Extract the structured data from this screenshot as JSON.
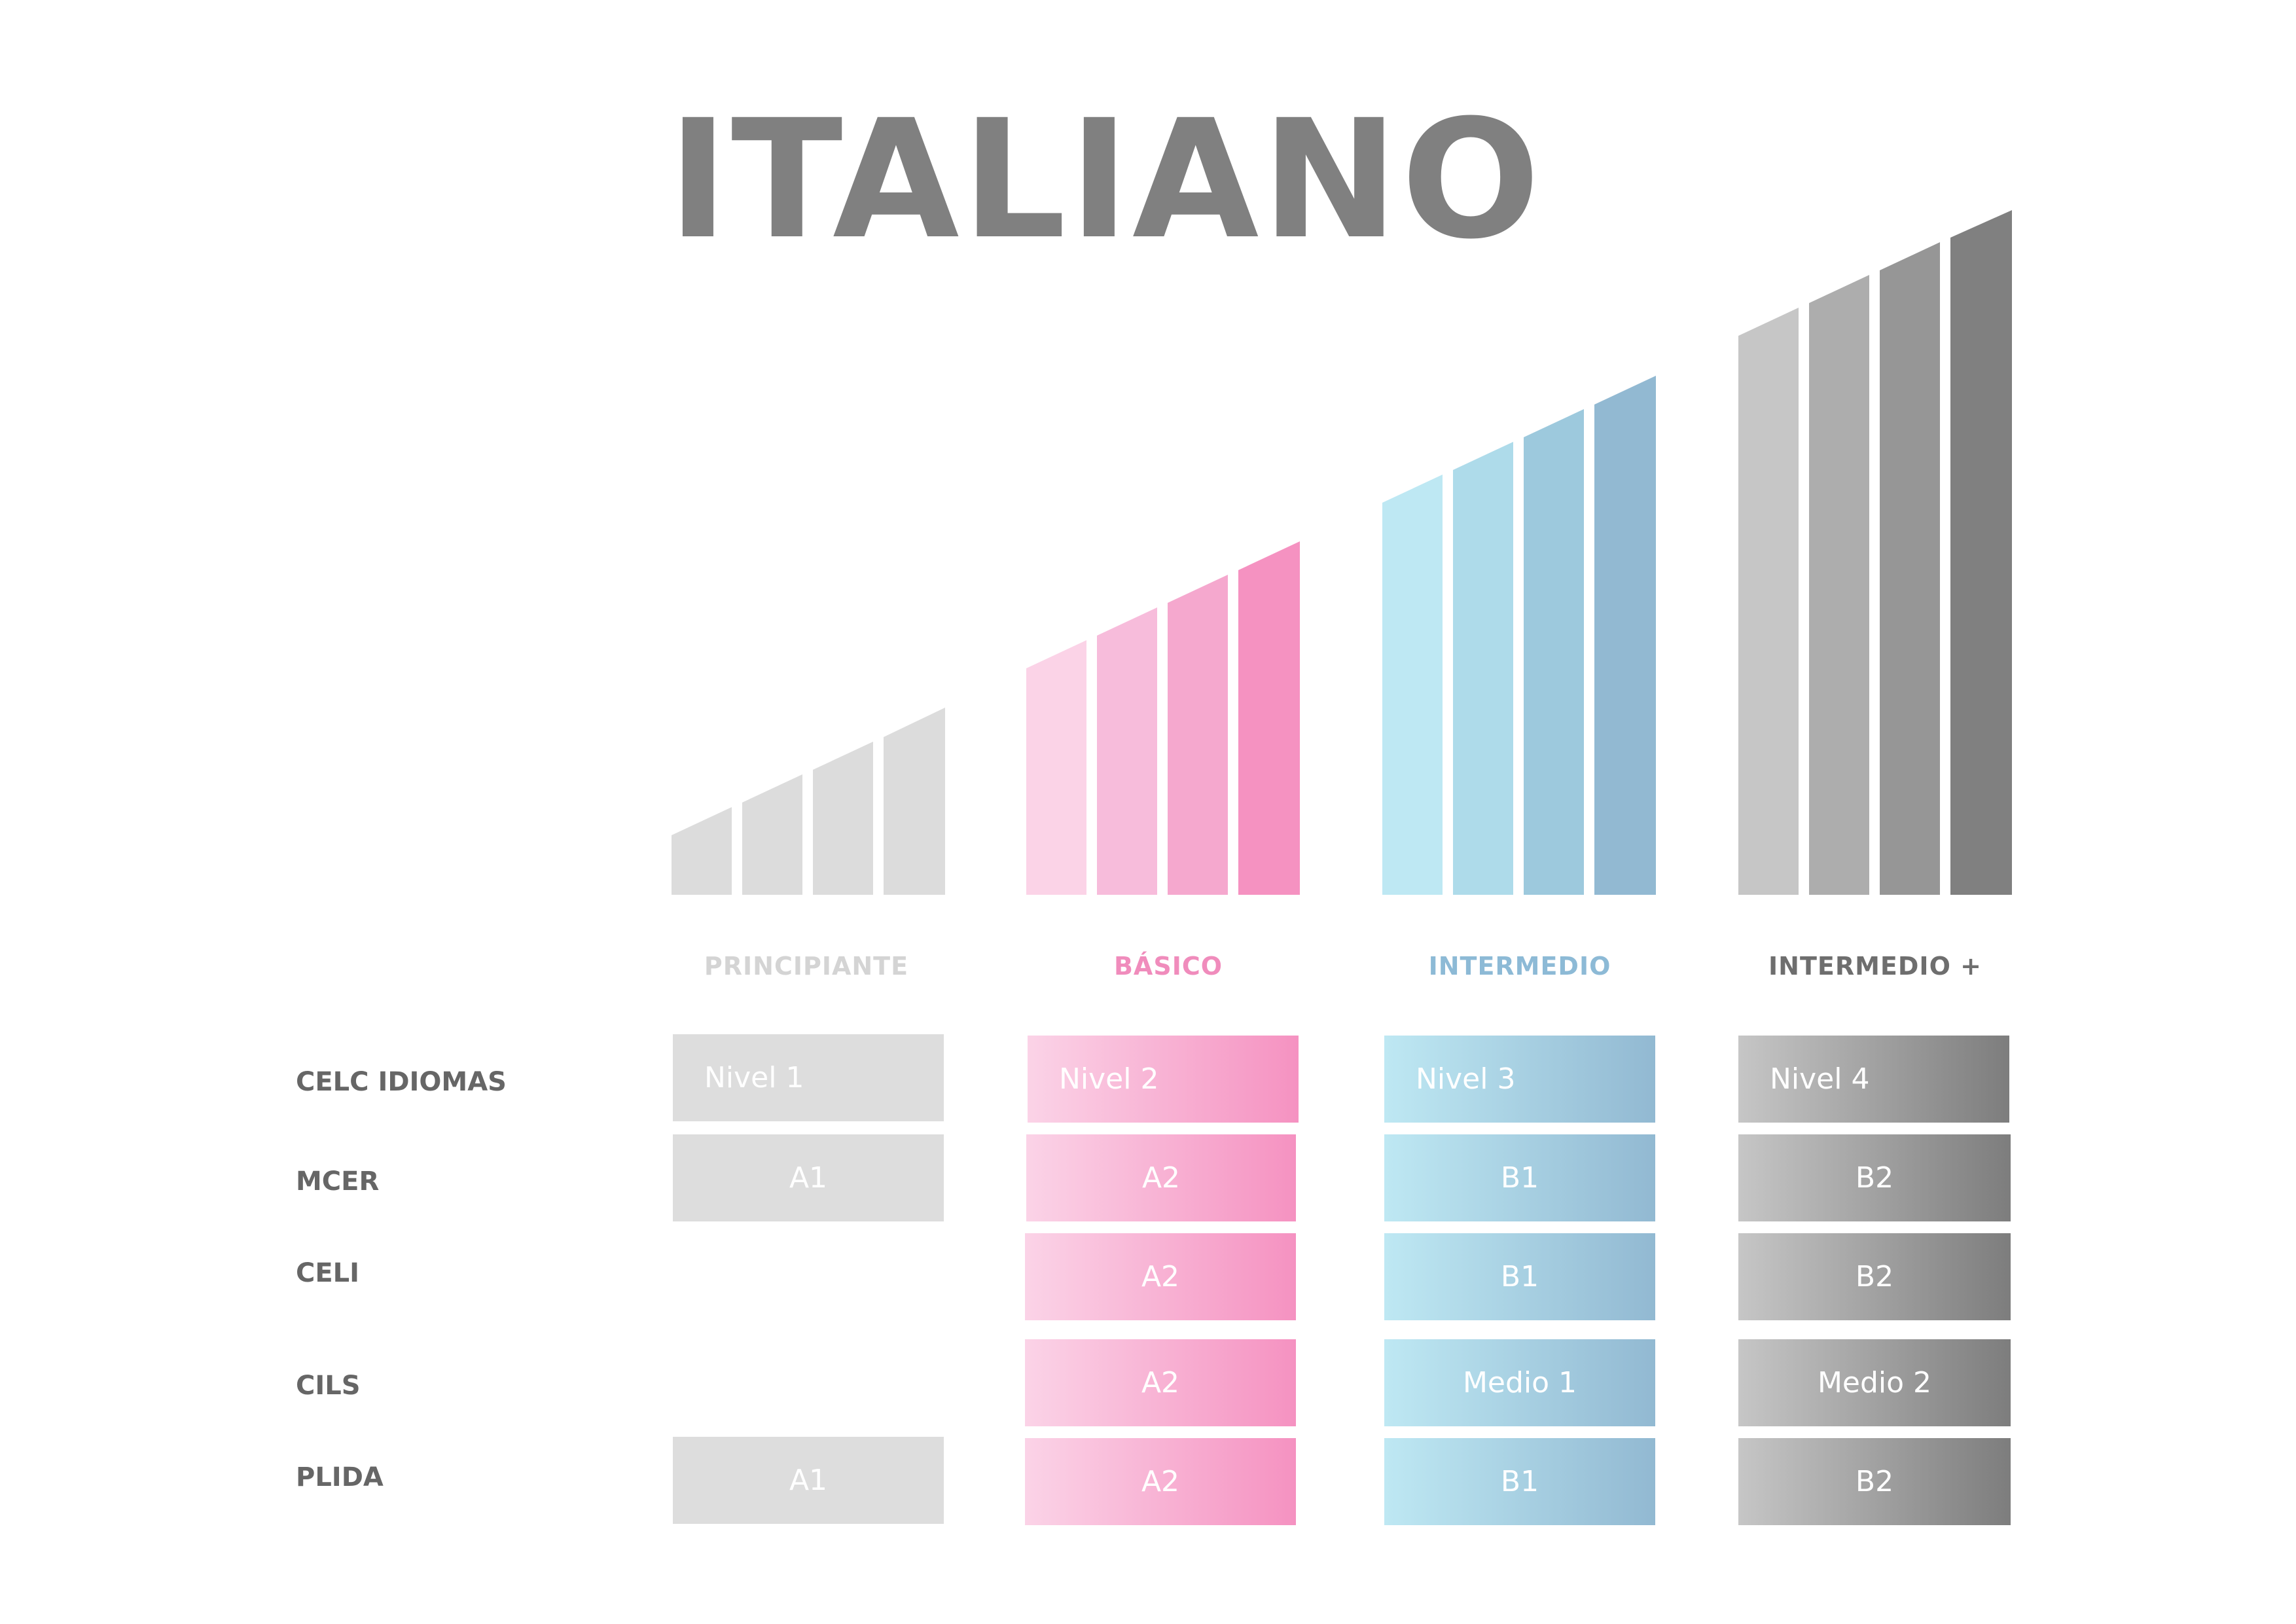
{
  "title": "ITALIANO",
  "colors": {
    "principiante": "#dcdcdc",
    "basico": "#f592c1",
    "intermedio": "#92b9d2",
    "intermedio_plus": "#808080",
    "label_text": "#666666"
  },
  "levels": [
    {
      "name": "PRINCIPIANTE",
      "color": "#d4d4d4"
    },
    {
      "name": "BÁSICO",
      "color": "#f08cbc"
    },
    {
      "name": "INTERMEDIO",
      "color": "#8dbad6"
    },
    {
      "name": "INTERMEDIO +",
      "color": "#6e6e6e"
    }
  ],
  "rows": [
    {
      "label": "CELC IDIOMAS",
      "cells": [
        "Nivel 1",
        "Nivel 2",
        "Nivel 3",
        "Nivel 4"
      ]
    },
    {
      "label": "MCER",
      "cells": [
        "A1",
        "A2",
        "B1",
        "B2"
      ]
    },
    {
      "label": "CELI",
      "cells": [
        "",
        "A2",
        "B1",
        "B2"
      ]
    },
    {
      "label": "CILS",
      "cells": [
        "",
        "A2",
        "Medio 1",
        "Medio 2"
      ]
    },
    {
      "label": "PLIDA",
      "cells": [
        "A1",
        "A2",
        "B1",
        "B2"
      ]
    }
  ]
}
